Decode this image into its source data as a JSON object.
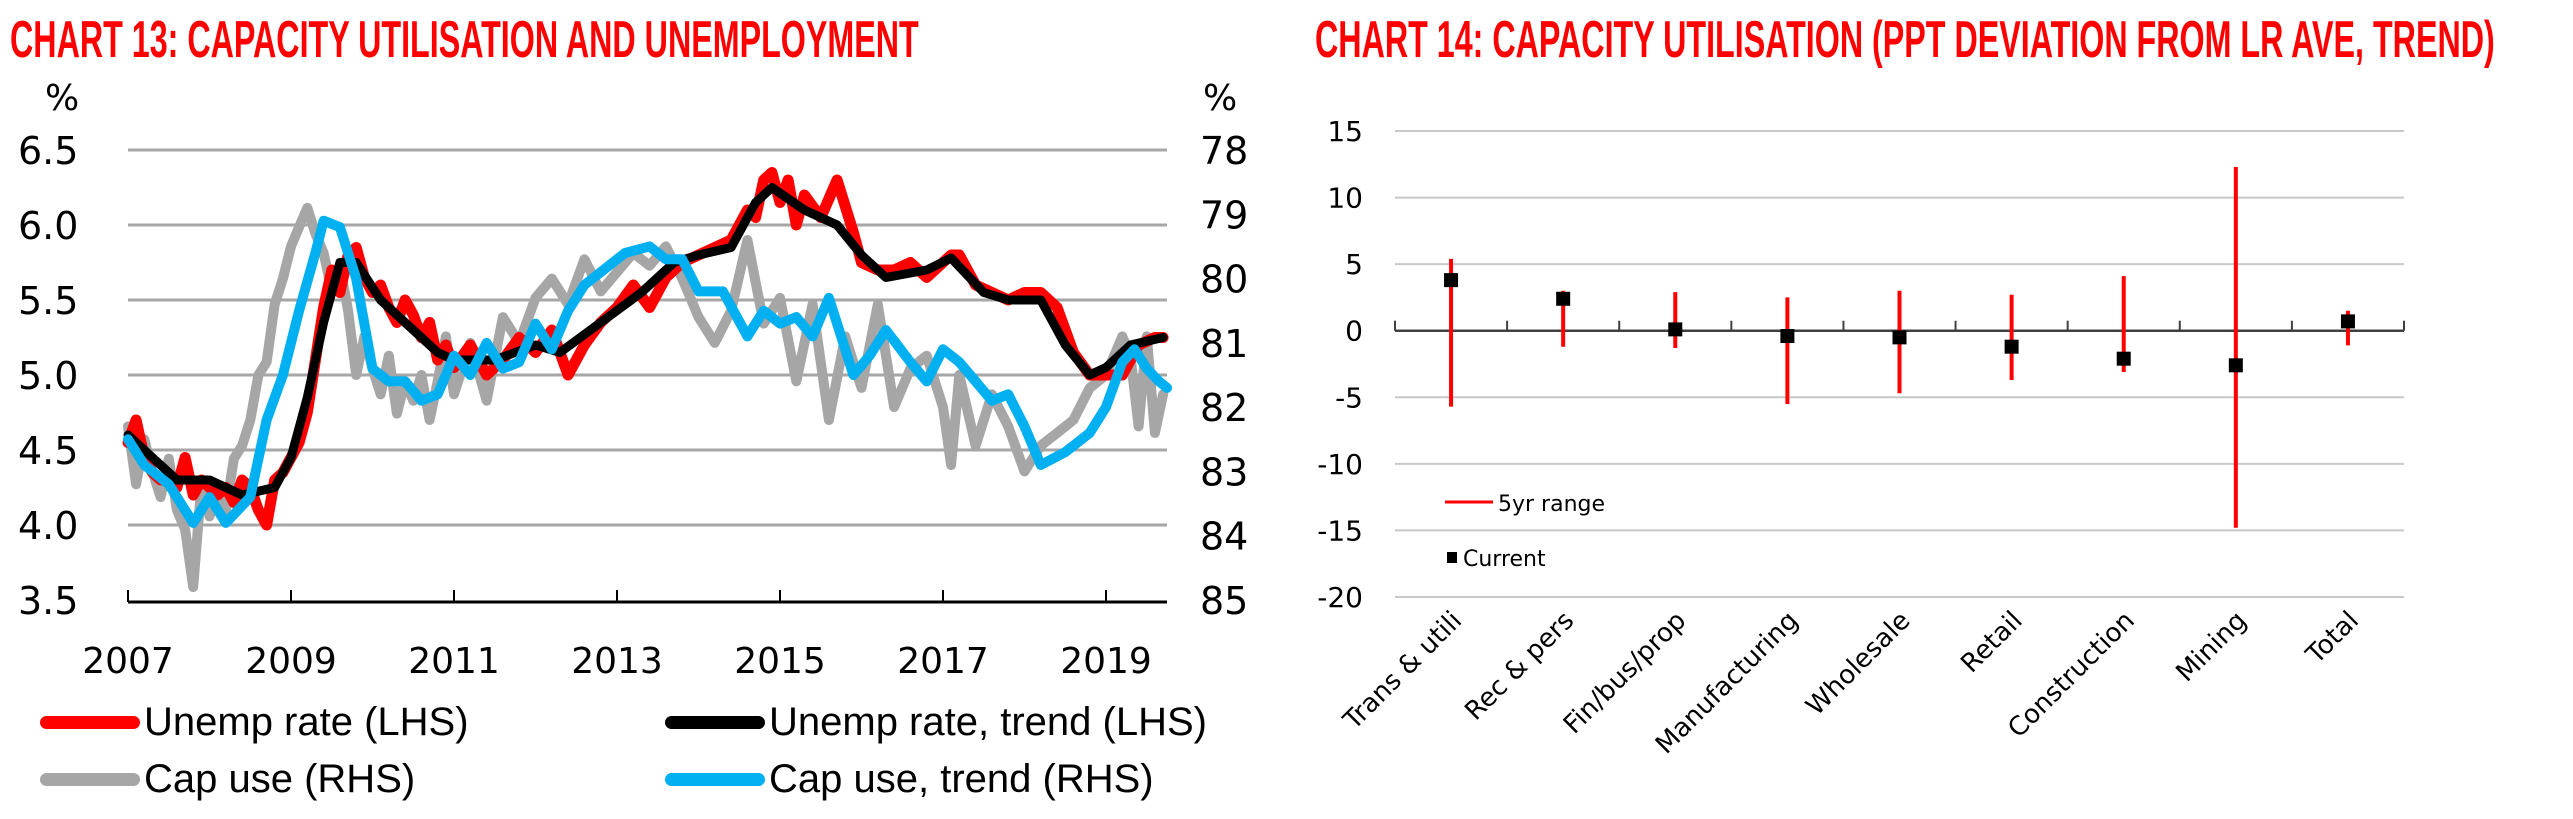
{
  "chart_data": [
    {
      "type": "line",
      "title": "CHART 13: CAPACITY UTILISATION AND UNEMPLOYMENT",
      "ylabel_left": "%",
      "ylabel_right": "%",
      "xlabel": "",
      "x_ticks": [
        "2007",
        "2009",
        "2011",
        "2013",
        "2015",
        "2017",
        "2019"
      ],
      "x_range": [
        2007,
        2019.75
      ],
      "y_left": {
        "range": [
          3.5,
          6.5
        ],
        "ticks": [
          "6.5",
          "6.0",
          "5.5",
          "5.0",
          "4.5",
          "4.0",
          "3.5"
        ]
      },
      "y_right": {
        "range": [
          78,
          85
        ],
        "inverted": true,
        "ticks": [
          "78",
          "79",
          "80",
          "81",
          "82",
          "83",
          "84",
          "85"
        ]
      },
      "grid": true,
      "legend_position": "bottom",
      "series": [
        {
          "name": "Unemp rate (LHS)",
          "axis": "left",
          "color": "#ff0000",
          "x": [
            2007.0,
            2007.1,
            2007.2,
            2007.3,
            2007.4,
            2007.5,
            2007.6,
            2007.7,
            2007.8,
            2007.9,
            2008.0,
            2008.1,
            2008.2,
            2008.3,
            2008.4,
            2008.5,
            2008.6,
            2008.7,
            2008.8,
            2008.9,
            2009.0,
            2009.1,
            2009.2,
            2009.3,
            2009.4,
            2009.5,
            2009.6,
            2009.7,
            2009.8,
            2009.9,
            2010.0,
            2010.1,
            2010.2,
            2010.3,
            2010.4,
            2010.5,
            2010.6,
            2010.7,
            2010.8,
            2010.9,
            2011.0,
            2011.2,
            2011.4,
            2011.6,
            2011.8,
            2012.0,
            2012.2,
            2012.4,
            2012.6,
            2012.8,
            2013.0,
            2013.2,
            2013.4,
            2013.6,
            2013.8,
            2014.0,
            2014.2,
            2014.4,
            2014.6,
            2014.7,
            2014.8,
            2014.9,
            2015.0,
            2015.1,
            2015.2,
            2015.3,
            2015.5,
            2015.7,
            2015.9,
            2016.0,
            2016.2,
            2016.4,
            2016.6,
            2016.8,
            2017.0,
            2017.1,
            2017.2,
            2017.4,
            2017.6,
            2017.8,
            2018.0,
            2018.2,
            2018.4,
            2018.6,
            2018.8,
            2019.0,
            2019.2,
            2019.4,
            2019.6,
            2019.7
          ],
          "values": [
            4.55,
            4.7,
            4.45,
            4.35,
            4.3,
            4.3,
            4.25,
            4.45,
            4.2,
            4.3,
            4.25,
            4.2,
            4.25,
            4.15,
            4.3,
            4.25,
            4.1,
            4.0,
            4.3,
            4.35,
            4.45,
            4.55,
            4.75,
            5.1,
            5.45,
            5.7,
            5.55,
            5.8,
            5.85,
            5.65,
            5.55,
            5.6,
            5.45,
            5.35,
            5.5,
            5.4,
            5.25,
            5.35,
            5.1,
            5.2,
            5.05,
            5.2,
            5.0,
            5.1,
            5.25,
            5.15,
            5.3,
            5.0,
            5.2,
            5.35,
            5.45,
            5.6,
            5.45,
            5.65,
            5.75,
            5.8,
            5.85,
            5.9,
            6.1,
            6.05,
            6.3,
            6.35,
            6.15,
            6.3,
            6.0,
            6.2,
            6.05,
            6.3,
            5.95,
            5.75,
            5.7,
            5.7,
            5.75,
            5.65,
            5.75,
            5.8,
            5.8,
            5.6,
            5.55,
            5.5,
            5.55,
            5.55,
            5.45,
            5.15,
            5.0,
            5.0,
            5.0,
            5.2,
            5.25,
            5.25
          ]
        },
        {
          "name": "Unemp rate, trend (LHS)",
          "axis": "left",
          "color": "#000000",
          "x": [
            2007.0,
            2007.3,
            2007.6,
            2008.0,
            2008.4,
            2008.8,
            2009.0,
            2009.2,
            2009.4,
            2009.6,
            2009.8,
            2010.1,
            2010.4,
            2010.8,
            2011.0,
            2011.5,
            2012.0,
            2012.3,
            2012.8,
            2013.3,
            2013.7,
            2014.0,
            2014.4,
            2014.7,
            2014.9,
            2015.3,
            2015.7,
            2016.0,
            2016.3,
            2016.8,
            2017.1,
            2017.5,
            2017.8,
            2018.2,
            2018.5,
            2018.8,
            2019.0,
            2019.3,
            2019.7
          ],
          "values": [
            4.6,
            4.45,
            4.3,
            4.3,
            4.2,
            4.25,
            4.45,
            4.85,
            5.35,
            5.75,
            5.75,
            5.5,
            5.35,
            5.15,
            5.1,
            5.1,
            5.2,
            5.15,
            5.35,
            5.55,
            5.75,
            5.8,
            5.85,
            6.15,
            6.25,
            6.1,
            6.0,
            5.8,
            5.65,
            5.7,
            5.78,
            5.55,
            5.5,
            5.5,
            5.2,
            5.0,
            5.05,
            5.2,
            5.25
          ]
        },
        {
          "name": "Cap use (RHS)",
          "axis": "right",
          "color": "#a6a6a6",
          "x": [
            2007.0,
            2007.1,
            2007.2,
            2007.3,
            2007.4,
            2007.5,
            2007.6,
            2007.7,
            2007.8,
            2007.9,
            2008.0,
            2008.1,
            2008.2,
            2008.3,
            2008.4,
            2008.5,
            2008.6,
            2008.7,
            2008.8,
            2008.9,
            2009.0,
            2009.1,
            2009.2,
            2009.3,
            2009.4,
            2009.5,
            2009.6,
            2009.7,
            2009.8,
            2009.9,
            2010.0,
            2010.1,
            2010.2,
            2010.3,
            2010.4,
            2010.5,
            2010.6,
            2010.7,
            2010.8,
            2010.9,
            2011.0,
            2011.2,
            2011.4,
            2011.6,
            2011.8,
            2012.0,
            2012.2,
            2012.4,
            2012.6,
            2012.8,
            2013.0,
            2013.2,
            2013.4,
            2013.6,
            2013.8,
            2014.0,
            2014.2,
            2014.4,
            2014.6,
            2014.8,
            2015.0,
            2015.2,
            2015.4,
            2015.6,
            2015.8,
            2016.0,
            2016.2,
            2016.4,
            2016.6,
            2016.8,
            2017.0,
            2017.1,
            2017.2,
            2017.4,
            2017.6,
            2017.8,
            2018.0,
            2018.2,
            2018.4,
            2018.6,
            2018.8,
            2019.0,
            2019.2,
            2019.3,
            2019.4,
            2019.5,
            2019.6,
            2019.7
          ],
          "values": [
            82.3,
            83.2,
            82.5,
            83.0,
            83.4,
            82.8,
            83.6,
            83.9,
            84.8,
            83.2,
            83.7,
            83.3,
            83.6,
            82.8,
            82.6,
            82.2,
            81.5,
            81.3,
            80.4,
            80.0,
            79.5,
            79.2,
            78.9,
            79.3,
            79.6,
            80.2,
            79.8,
            80.5,
            81.5,
            80.9,
            81.4,
            81.8,
            81.2,
            82.1,
            81.6,
            81.9,
            81.5,
            82.2,
            81.6,
            80.9,
            81.8,
            81.0,
            81.9,
            80.6,
            81.0,
            80.3,
            80.0,
            80.4,
            79.7,
            80.2,
            79.9,
            79.6,
            79.8,
            79.5,
            80.0,
            80.6,
            81.0,
            80.5,
            79.4,
            80.7,
            80.3,
            81.6,
            80.4,
            82.2,
            80.9,
            81.7,
            80.4,
            82.0,
            81.4,
            81.2,
            82.0,
            82.9,
            81.5,
            82.6,
            81.8,
            82.3,
            83.0,
            82.6,
            82.4,
            82.2,
            81.7,
            81.5,
            80.9,
            81.2,
            82.3,
            80.9,
            82.4,
            81.8
          ]
        },
        {
          "name": "Cap use, trend (RHS)",
          "axis": "right",
          "color": "#00b0f0",
          "x": [
            2007.0,
            2007.2,
            2007.5,
            2007.8,
            2008.0,
            2008.2,
            2008.5,
            2008.7,
            2008.9,
            2009.1,
            2009.3,
            2009.4,
            2009.6,
            2009.8,
            2010.0,
            2010.2,
            2010.4,
            2010.6,
            2010.8,
            2011.0,
            2011.2,
            2011.4,
            2011.6,
            2011.8,
            2012.0,
            2012.2,
            2012.4,
            2012.6,
            2012.9,
            2013.1,
            2013.4,
            2013.6,
            2013.8,
            2014.0,
            2014.3,
            2014.6,
            2014.8,
            2015.0,
            2015.2,
            2015.4,
            2015.6,
            2015.9,
            2016.1,
            2016.3,
            2016.6,
            2016.8,
            2017.0,
            2017.2,
            2017.4,
            2017.6,
            2017.8,
            2018.0,
            2018.2,
            2018.5,
            2018.8,
            2019.0,
            2019.2,
            2019.35,
            2019.5,
            2019.65,
            2019.75
          ],
          "values": [
            82.5,
            82.9,
            83.2,
            83.8,
            83.4,
            83.8,
            83.4,
            82.2,
            81.5,
            80.5,
            79.6,
            79.1,
            79.2,
            80.0,
            81.4,
            81.6,
            81.6,
            81.9,
            81.8,
            81.2,
            81.5,
            81.0,
            81.4,
            81.3,
            80.7,
            81.1,
            80.5,
            80.1,
            79.8,
            79.6,
            79.5,
            79.7,
            79.7,
            80.2,
            80.2,
            80.9,
            80.5,
            80.7,
            80.6,
            80.9,
            80.3,
            81.5,
            81.2,
            80.8,
            81.3,
            81.6,
            81.1,
            81.3,
            81.6,
            81.9,
            81.8,
            82.3,
            82.9,
            82.7,
            82.4,
            82.0,
            81.3,
            81.1,
            81.4,
            81.6,
            81.7
          ]
        }
      ]
    },
    {
      "type": "scatter",
      "subtype": "range-with-marker",
      "title": "CHART 14: CAPACITY UTILISATION (PPT DEVIATION FROM LR AVE, TREND)",
      "xlabel": "",
      "ylabel": "",
      "ylim": [
        -20,
        15
      ],
      "y_ticks": [
        "15",
        "10",
        "5",
        "0",
        "-5",
        "-10",
        "-15",
        "-20"
      ],
      "grid": true,
      "legend_position": "bottom-left inside",
      "categories": [
        "Trans & utili",
        "Rec & pers",
        "Fin/bus/prop",
        "Manufacturing",
        "Wholesale",
        "Retail",
        "Construction",
        "Mining",
        "Total"
      ],
      "series": [
        {
          "name": "5yr range",
          "color": "#ff0000",
          "high": [
            5.4,
            3.0,
            2.9,
            2.5,
            3.0,
            2.7,
            4.1,
            12.3,
            1.5
          ],
          "low": [
            -5.7,
            -1.2,
            -1.3,
            -5.5,
            -4.7,
            -3.7,
            -3.1,
            -14.8,
            -1.1
          ]
        },
        {
          "name": "Current",
          "color": "#000000",
          "values": [
            3.8,
            2.4,
            0.1,
            -0.4,
            -0.5,
            -1.2,
            -2.1,
            -2.6,
            0.7
          ]
        }
      ]
    }
  ]
}
